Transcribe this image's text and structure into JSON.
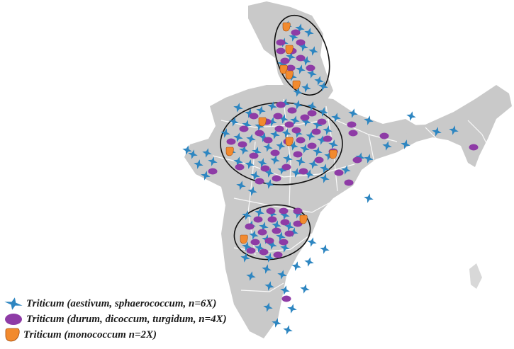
{
  "colors": {
    "land": "#c9c9c9",
    "state_border": "#ffffff",
    "cluster_outline": "#111111",
    "hexaploid": "#2e86c1",
    "tetraploid": "#8e3ba6",
    "diploid": "#f28a2e"
  },
  "legend": [
    {
      "symbol": "star-icon",
      "label": "Triticum (aestivum, sphaerococcum, n=6X)"
    },
    {
      "symbol": "ellipse-icon",
      "label": "Triticum (durum, dicoccum, turgidum, n=4X)"
    },
    {
      "symbol": "drop-icon",
      "label": "Triticum (monococcum n=2X)"
    }
  ]
}
